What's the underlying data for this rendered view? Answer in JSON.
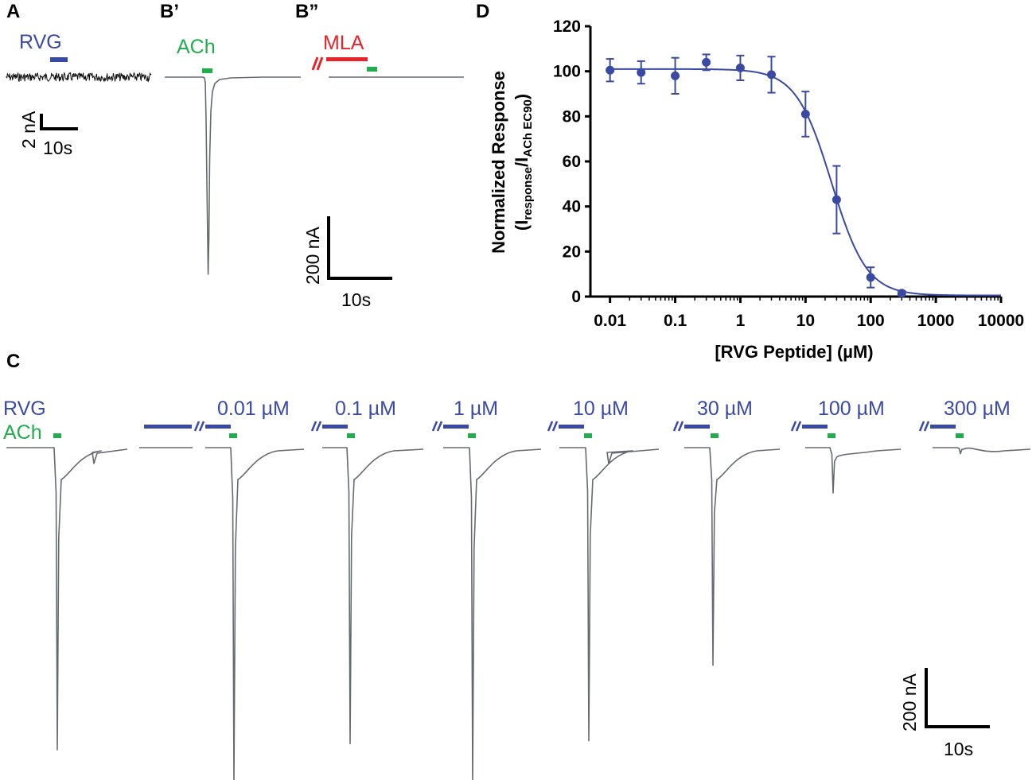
{
  "panels": {
    "A": {
      "label": "A",
      "drug_label": "RVG",
      "scale_current": "2 nA",
      "scale_time": "10s"
    },
    "B1": {
      "label": "B’",
      "drug_label": "ACh"
    },
    "B2": {
      "label": "B”",
      "drug_label": "MLA",
      "scale_current": "200 nA",
      "scale_time": "10s"
    },
    "C": {
      "label": "C",
      "row_labels": {
        "rvg": "RVG",
        "ach": "ACh"
      },
      "concentrations": [
        "0.01 µM",
        "0.1 µM",
        "1 µM",
        "10 µM",
        "30 µM",
        "100 µM",
        "300 µM"
      ],
      "relative_peak_amplitudes": [
        1.0,
        0.0,
        1.11,
        0.98,
        1.11,
        0.97,
        0.72,
        0.15,
        0.02
      ],
      "scale_current": "200 nA",
      "scale_time": "10s"
    },
    "D": {
      "label": "D"
    }
  },
  "colors": {
    "rvg": "#3a4aa3",
    "ach": "#1fae4b",
    "mla": "#e8232a",
    "trace": "#666a70"
  },
  "chart_data": {
    "type": "scatter",
    "title": "",
    "xlabel": "[RVG Peptide] (µM)",
    "ylabel": {
      "line1": "Normalized Response",
      "open": "(I",
      "sub1": "response",
      "slash": "/I",
      "sub2": "ACh EC90",
      "close": ")"
    },
    "x_scale": "log",
    "xlim": [
      0.005,
      10000
    ],
    "ylim": [
      0,
      120
    ],
    "x_ticks": [
      0.01,
      0.1,
      1,
      10,
      100,
      1000,
      10000
    ],
    "x_tick_labels": [
      "0.01",
      "0.1",
      "1",
      "10",
      "100",
      "1000",
      "10000"
    ],
    "y_ticks": [
      0,
      20,
      40,
      60,
      80,
      100,
      120
    ],
    "y_tick_labels": [
      "0",
      "20",
      "40",
      "60",
      "80",
      "100",
      "120"
    ],
    "series": [
      {
        "name": "RVG Peptide",
        "x": [
          0.01,
          0.03,
          0.1,
          0.3,
          1,
          3,
          10,
          30,
          100,
          300
        ],
        "y": [
          100.5,
          99.5,
          98,
          104,
          101.5,
          98.5,
          81,
          43,
          8.5,
          1.5
        ],
        "error": [
          5,
          5,
          8,
          3.5,
          5.5,
          8,
          10,
          15,
          4.5,
          1
        ]
      }
    ],
    "fit": {
      "model": "Hill inhibition",
      "top": 101,
      "bottom": 0.5,
      "ic50_uM": 25,
      "hill_slope": 1.6
    }
  }
}
